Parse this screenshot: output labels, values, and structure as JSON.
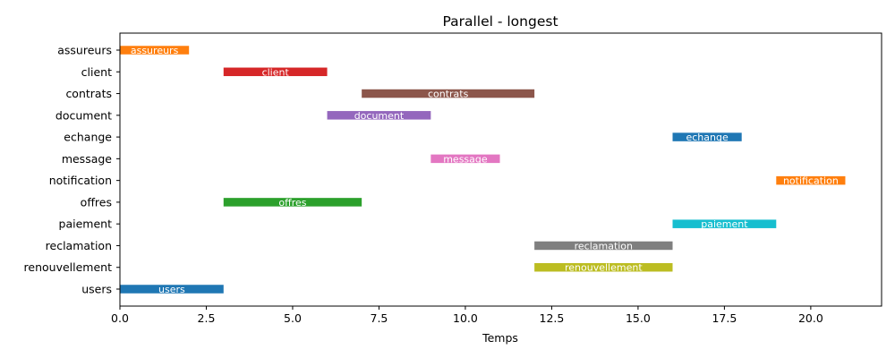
{
  "chart_data": {
    "type": "bar",
    "orientation": "horizontal-gantt",
    "title": "Parallel - longest",
    "xlabel": "Temps",
    "ylabel": "",
    "xlim": [
      0,
      22.05
    ],
    "xticks": [
      "0.0",
      "2.5",
      "5.0",
      "7.5",
      "10.0",
      "12.5",
      "15.0",
      "17.5",
      "20.0"
    ],
    "xtick_values": [
      0,
      2.5,
      5,
      7.5,
      10,
      12.5,
      15,
      17.5,
      20
    ],
    "grid": false,
    "legend": "none",
    "categories": [
      "assureurs",
      "client",
      "contrats",
      "document",
      "echange",
      "message",
      "notification",
      "offres",
      "paiement",
      "reclamation",
      "renouvellement",
      "users"
    ],
    "tasks": [
      {
        "name": "assureurs",
        "start": 0,
        "end": 2,
        "color": "#ff7f0e"
      },
      {
        "name": "client",
        "start": 3,
        "end": 6,
        "color": "#d62728"
      },
      {
        "name": "contrats",
        "start": 7,
        "end": 12,
        "color": "#8c564b"
      },
      {
        "name": "document",
        "start": 6,
        "end": 9,
        "color": "#9467bd"
      },
      {
        "name": "echange",
        "start": 16,
        "end": 18,
        "color": "#1f77b4"
      },
      {
        "name": "message",
        "start": 9,
        "end": 11,
        "color": "#e377c2"
      },
      {
        "name": "notification",
        "start": 19,
        "end": 21,
        "color": "#ff7f0e"
      },
      {
        "name": "offres",
        "start": 3,
        "end": 7,
        "color": "#2ca02c"
      },
      {
        "name": "paiement",
        "start": 16,
        "end": 19,
        "color": "#17becf"
      },
      {
        "name": "reclamation",
        "start": 12,
        "end": 16,
        "color": "#7f7f7f"
      },
      {
        "name": "renouvellement",
        "start": 12,
        "end": 16,
        "color": "#bcbd22"
      },
      {
        "name": "users",
        "start": 0,
        "end": 3,
        "color": "#1f77b4"
      }
    ]
  }
}
